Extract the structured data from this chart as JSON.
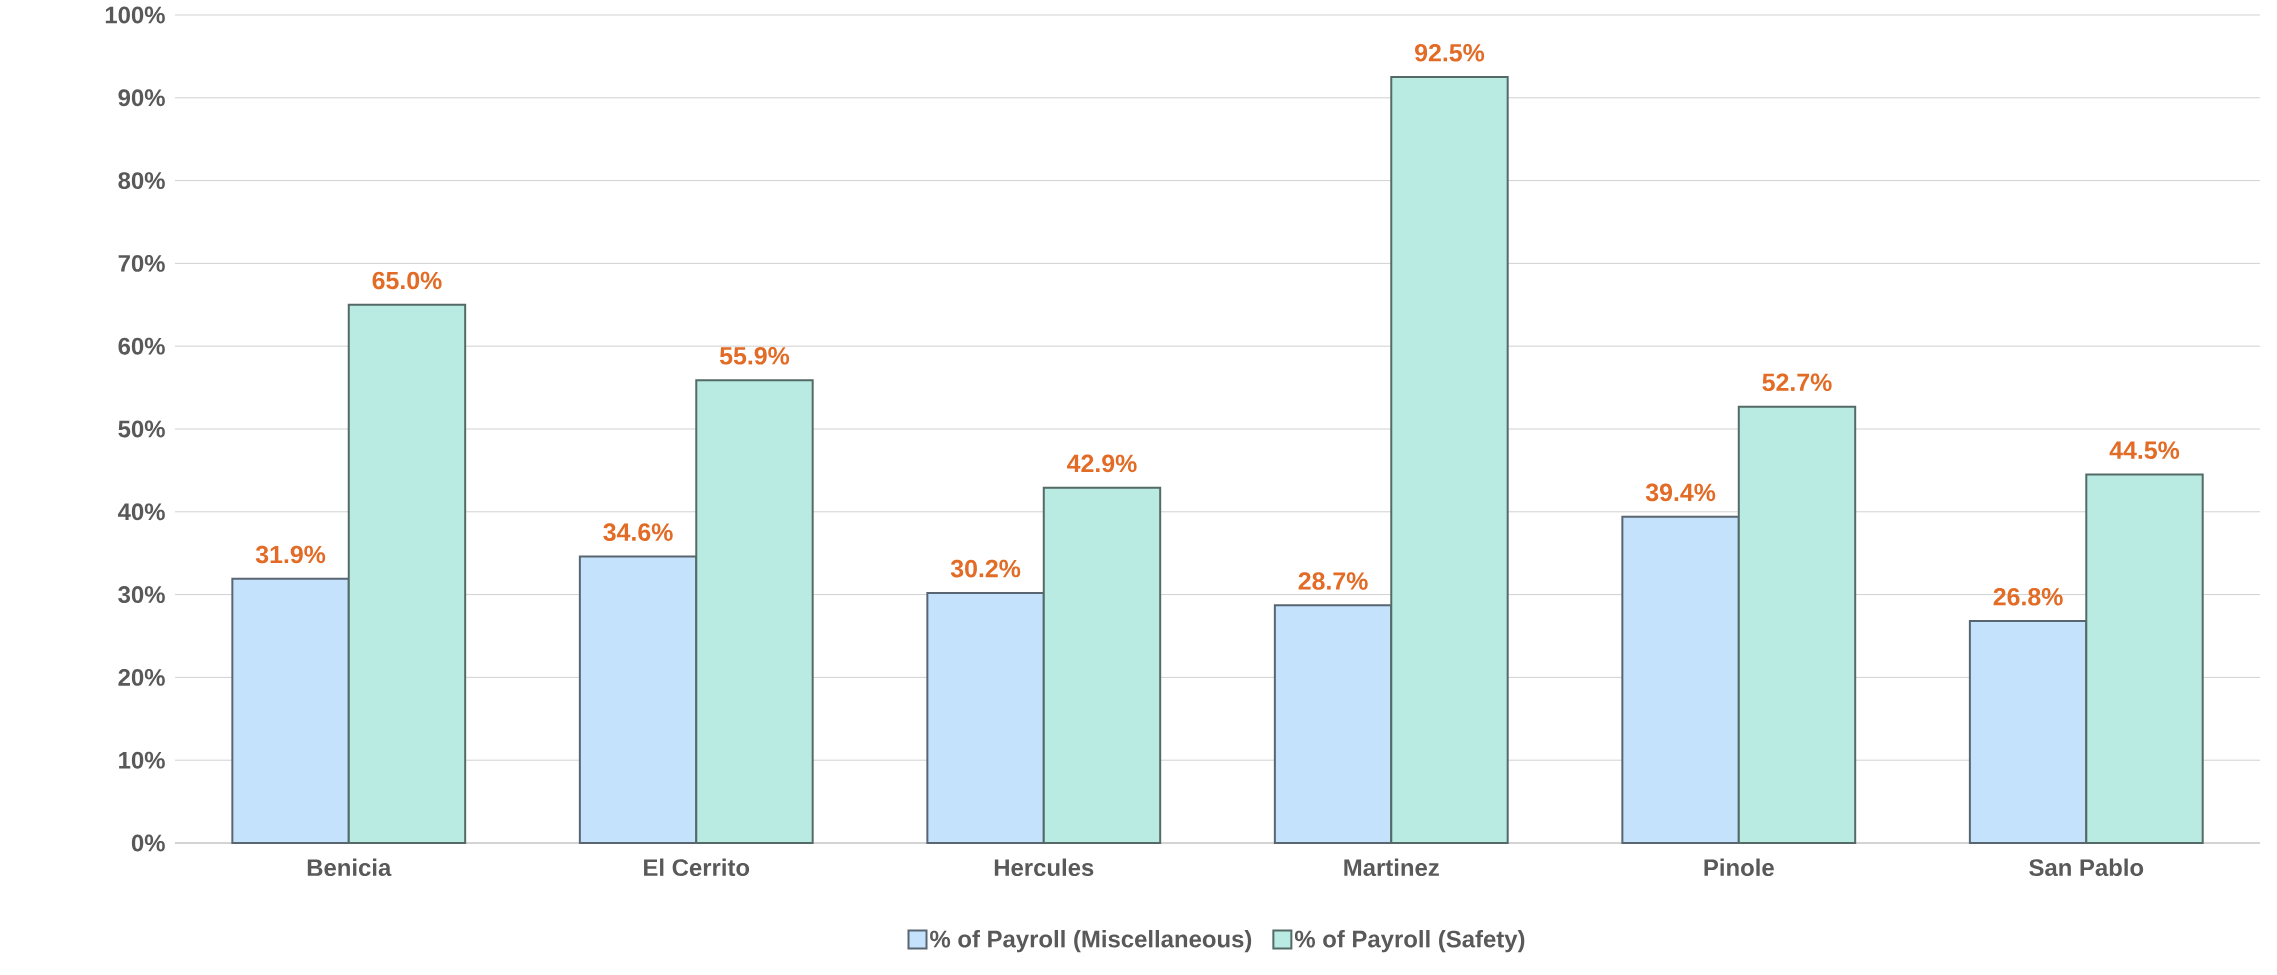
{
  "chart_data": {
    "type": "bar",
    "categories": [
      "Benicia",
      "El Cerrito",
      "Hercules",
      "Martinez",
      "Pinole",
      "San Pablo"
    ],
    "series": [
      {
        "name": "% of Payroll (Miscellaneous)",
        "color": "#c5e2fc",
        "values": [
          31.9,
          34.6,
          30.2,
          28.7,
          39.4,
          26.8
        ],
        "value_labels": [
          "31.9%",
          "34.6%",
          "30.2%",
          "28.7%",
          "39.4%",
          "26.8%"
        ]
      },
      {
        "name": "% of Payroll (Safety)",
        "color": "#b9ebe2",
        "values": [
          65.0,
          55.9,
          42.9,
          92.5,
          52.7,
          44.5
        ],
        "value_labels": [
          "65.0%",
          "55.9%",
          "42.9%",
          "92.5%",
          "52.7%",
          "44.5%"
        ]
      }
    ],
    "ylim": [
      0,
      100
    ],
    "yticks": [
      {
        "value": 0,
        "label": "0%"
      },
      {
        "value": 10,
        "label": "10%"
      },
      {
        "value": 20,
        "label": "20%"
      },
      {
        "value": 30,
        "label": "30%"
      },
      {
        "value": 40,
        "label": "40%"
      },
      {
        "value": 50,
        "label": "50%"
      },
      {
        "value": 60,
        "label": "60%"
      },
      {
        "value": 70,
        "label": "70%"
      },
      {
        "value": 80,
        "label": "80%"
      },
      {
        "value": 90,
        "label": "90%"
      },
      {
        "value": 100,
        "label": "100%"
      }
    ],
    "grid": "y",
    "legend": "bottom"
  }
}
